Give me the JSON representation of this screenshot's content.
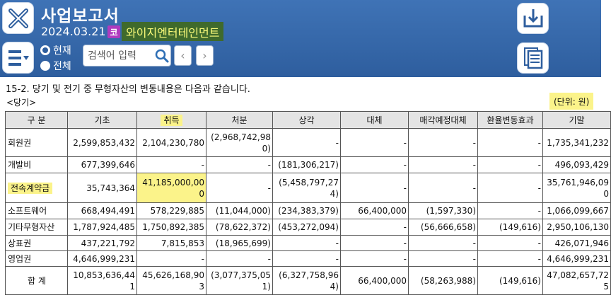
{
  "header": {
    "title": "사업보고서",
    "date": "2024.03.21",
    "market_badge": "코",
    "company": "와이지엔터테인먼트",
    "radio_current": "현재",
    "radio_all": "전체",
    "search_placeholder": "검색어 입력",
    "prev_label": "‹",
    "next_label": "›"
  },
  "icons": {
    "close": "close-icon",
    "menu": "menu-dropdown-icon",
    "search": "search-icon",
    "download": "download-icon",
    "document": "document-list-icon"
  },
  "colors": {
    "topbar": "#3f73b6",
    "company_bg": "#3f6a2c",
    "company_text": "#fbfb7a",
    "highlight": "#fbf38a",
    "badge": "#b03bbf"
  },
  "section": {
    "title": "15-2. 당기 및 전기 중 무형자산의 변동내용은 다음과 같습니다.",
    "period": "<당기>",
    "unit": "(단위: 원)"
  },
  "table": {
    "headers": [
      "구 분",
      "기초",
      "취득",
      "처분",
      "상각",
      "대체",
      "매각예정대체",
      "환율변동효과",
      "기말"
    ],
    "rows": [
      [
        "회원권",
        "2,599,853,432",
        "2,104,230,780",
        "(2,968,742,980)",
        "-",
        "-",
        "-",
        "-",
        "1,735,341,232"
      ],
      [
        "개발비",
        "677,399,646",
        "-",
        "-",
        "(181,306,217)",
        "-",
        "-",
        "-",
        "496,093,429"
      ],
      [
        "전속계약금",
        "35,743,364",
        "41,185,000,000",
        "-",
        "(5,458,797,274)",
        "-",
        "-",
        "-",
        "35,761,946,090"
      ],
      [
        "소프트웨어",
        "668,494,491",
        "578,229,885",
        "(11,044,000)",
        "(234,383,379)",
        "66,400,000",
        "(1,597,330)",
        "-",
        "1,066,099,667"
      ],
      [
        "기타무형자산",
        "1,787,924,485",
        "1,750,892,385",
        "(78,622,372)",
        "(453,272,094)",
        "-",
        "(56,666,658)",
        "(149,616)",
        "2,950,106,130"
      ],
      [
        "상표권",
        "437,221,792",
        "7,815,853",
        "(18,965,699)",
        "-",
        "-",
        "-",
        "-",
        "426,071,946"
      ],
      [
        "영업권",
        "4,646,999,231",
        "-",
        "-",
        "-",
        "-",
        "-",
        "-",
        "4,646,999,231"
      ],
      [
        "합 계",
        "10,853,636,441",
        "45,626,168,903",
        "(3,077,375,051)",
        "(6,327,758,964)",
        "66,400,000",
        "(58,263,988)",
        "(149,616)",
        "47,082,657,725"
      ]
    ]
  }
}
